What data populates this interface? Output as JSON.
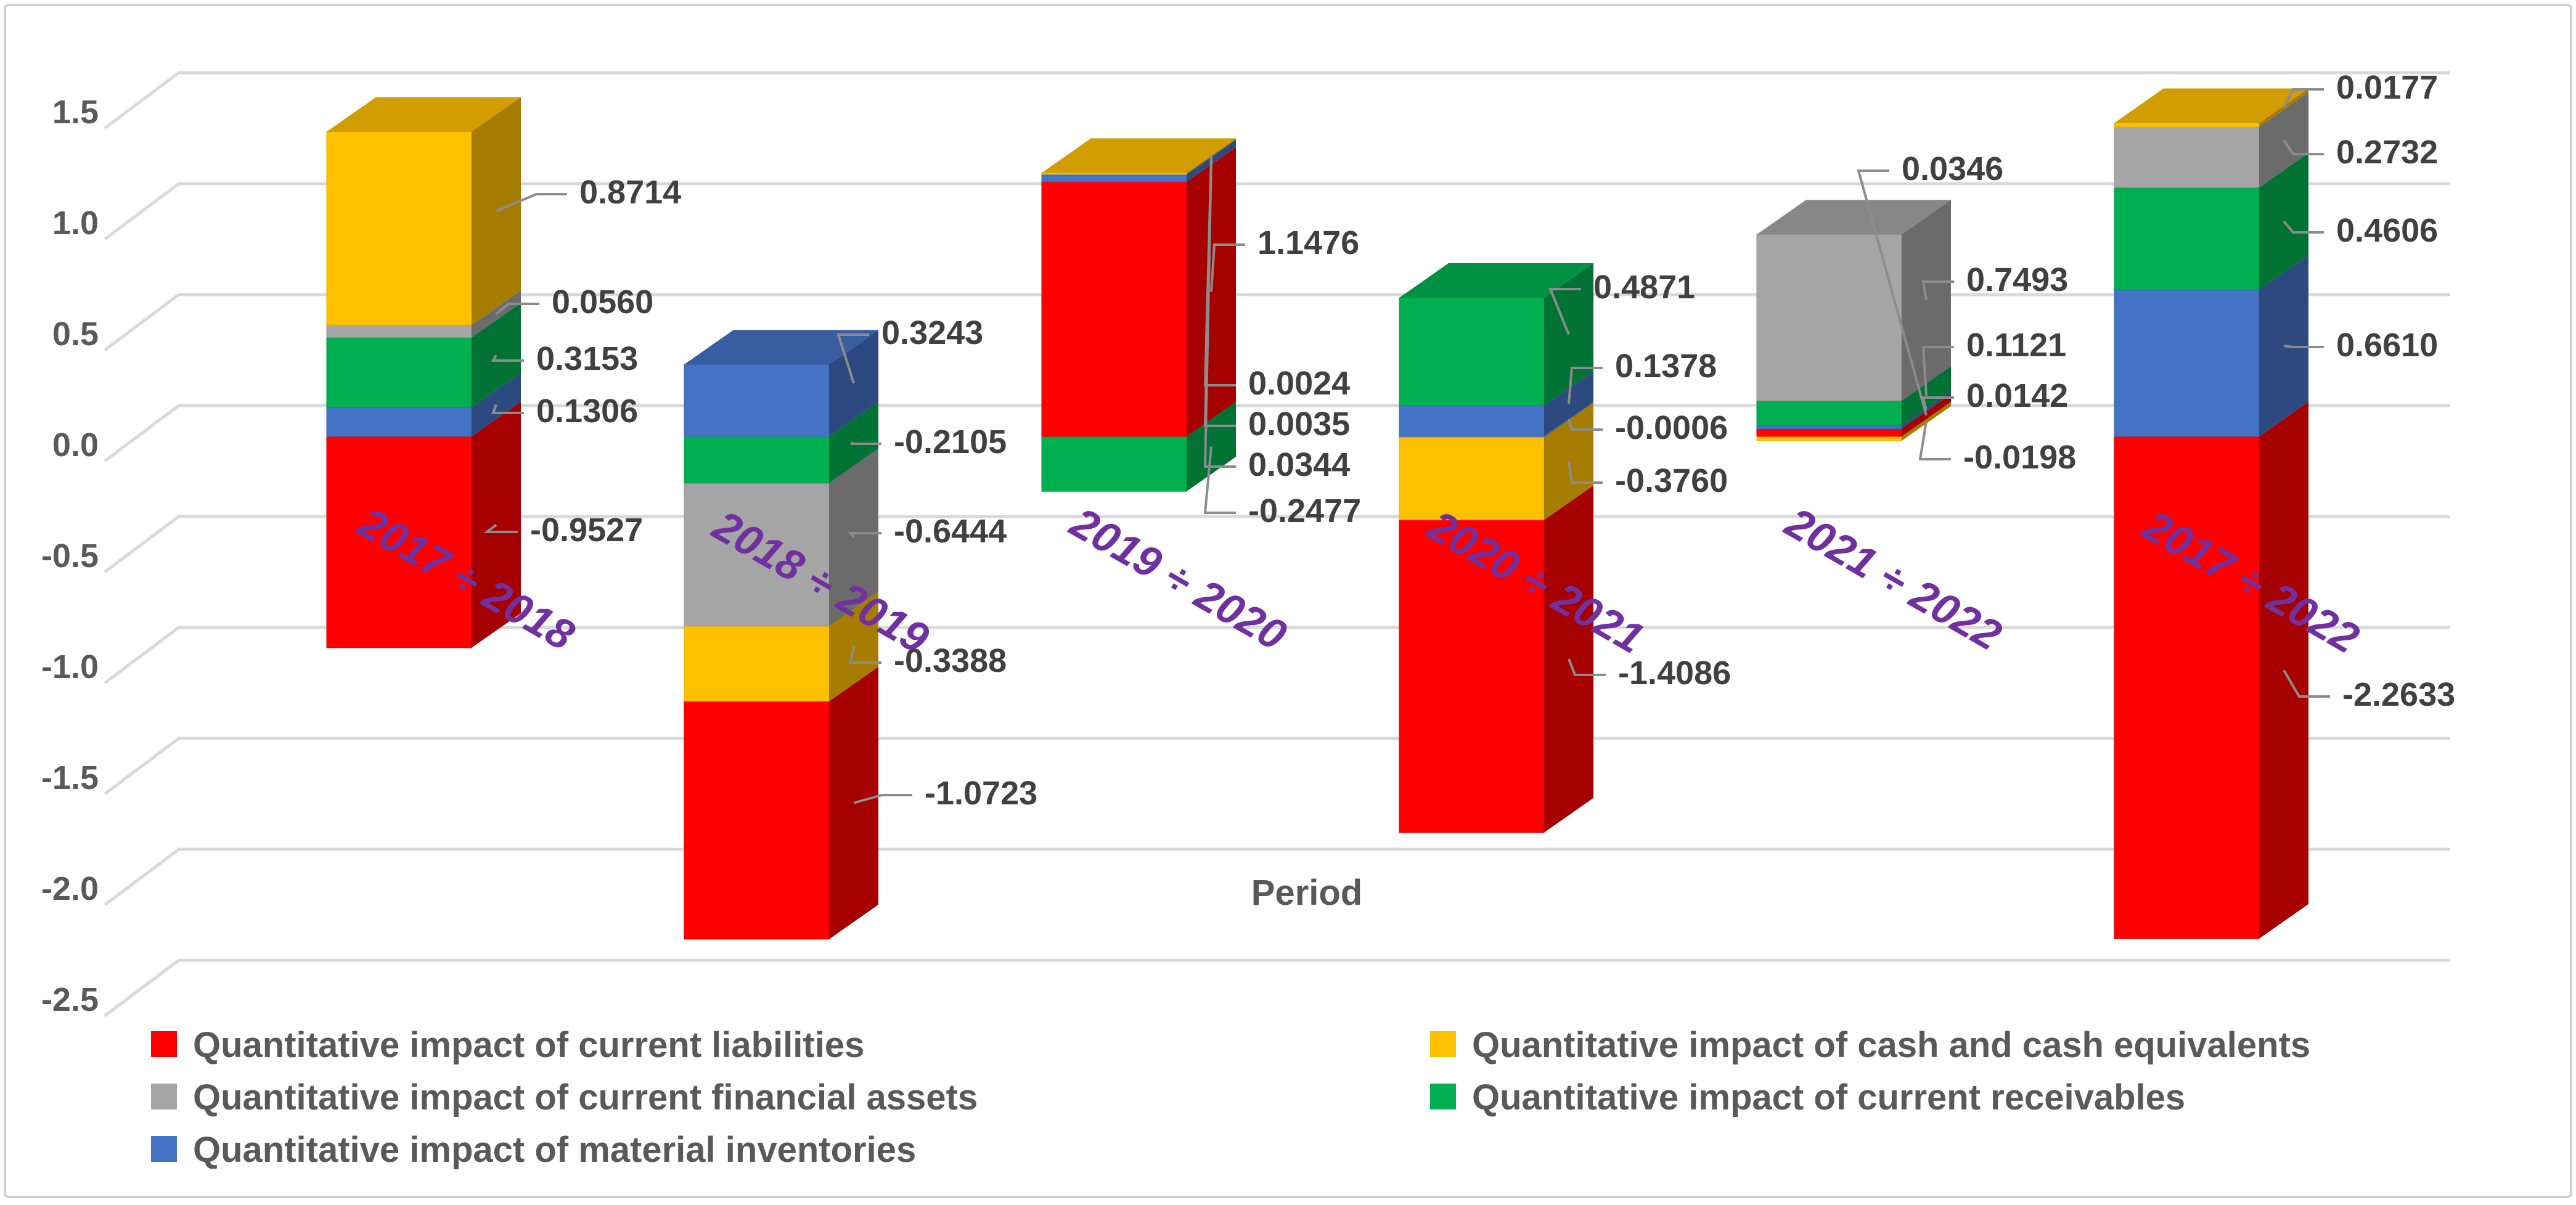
{
  "chart_data": {
    "type": "bar",
    "stacked": true,
    "style": "3d-stacked-column",
    "xlabel": "Period",
    "ylabel": "",
    "ylim": [
      -2.5,
      1.5
    ],
    "yticks": [
      1.5,
      1.0,
      0.5,
      0.0,
      -0.5,
      -1.0,
      -1.5,
      -2.0,
      -2.5
    ],
    "ytick_labels": [
      "1.5",
      "1.0",
      "0.5",
      "0.0",
      "-0.5",
      "-1.0",
      "-1.5",
      "-2.0",
      "-2.5"
    ],
    "grid": true,
    "legend_position": "bottom",
    "categories": [
      "2017 ÷ 2018",
      "2018 ÷ 2019",
      "2019 ÷ 2020",
      "2020 ÷ 2021",
      "2021 ÷ 2022",
      "2017 ÷ 2022"
    ],
    "series": [
      {
        "name": "Quantitative impact of current liabilities",
        "color": "#ff0000",
        "values": [
          -0.9527,
          -1.0723,
          1.1476,
          -1.4086,
          0.0346,
          -2.2633
        ],
        "labels": [
          "-0.9527",
          "-1.0723",
          "1.1476",
          "-1.4086",
          "0.0346",
          "-2.2633"
        ]
      },
      {
        "name": "Quantitative impact of cash and cash equivalents",
        "color": "#ffc000",
        "values": [
          0.8714,
          -0.3388,
          0.0024,
          -0.376,
          -0.0198,
          0.0177
        ],
        "labels": [
          "0.8714",
          "-0.3388",
          "0.0024",
          "-0.3760",
          "-0.0198",
          "0.0177"
        ]
      },
      {
        "name": "Quantitative impact of current financial assets",
        "color": "#a5a5a5",
        "values": [
          0.056,
          -0.6444,
          0.0035,
          -0.0006,
          0.7493,
          0.2732
        ],
        "labels": [
          "0.0560",
          "-0.6444",
          "0.0035",
          "-0.0006",
          "0.7493",
          "0.2732"
        ]
      },
      {
        "name": "Quantitative impact of current receivables",
        "color": "#00b050",
        "values": [
          0.3153,
          -0.2105,
          -0.2477,
          0.4871,
          0.1121,
          0.4606
        ],
        "labels": [
          "0.3153",
          "-0.2105",
          "-0.2477",
          "0.4871",
          "0.1121",
          "0.4606"
        ]
      },
      {
        "name": "Quantitative impact of material inventories",
        "color": "#4472c4",
        "values": [
          0.1306,
          0.3243,
          0.0344,
          0.1378,
          0.0142,
          0.661
        ],
        "labels": [
          "0.1306",
          "0.3243",
          "0.0344",
          "0.1378",
          "0.0142",
          "0.6610"
        ]
      }
    ],
    "category_label_color": "#7030a0",
    "legend": {
      "items": [
        {
          "label": "Quantitative impact of current liabilities",
          "color": "#ff0000"
        },
        {
          "label": "Quantitative impact of cash and cash equivalents",
          "color": "#ffc000"
        },
        {
          "label": "Quantitative impact of current financial assets",
          "color": "#a5a5a5"
        },
        {
          "label": "Quantitative impact of current receivables",
          "color": "#00b050"
        },
        {
          "label": "Quantitative impact of material inventories",
          "color": "#4472c4"
        }
      ]
    }
  }
}
